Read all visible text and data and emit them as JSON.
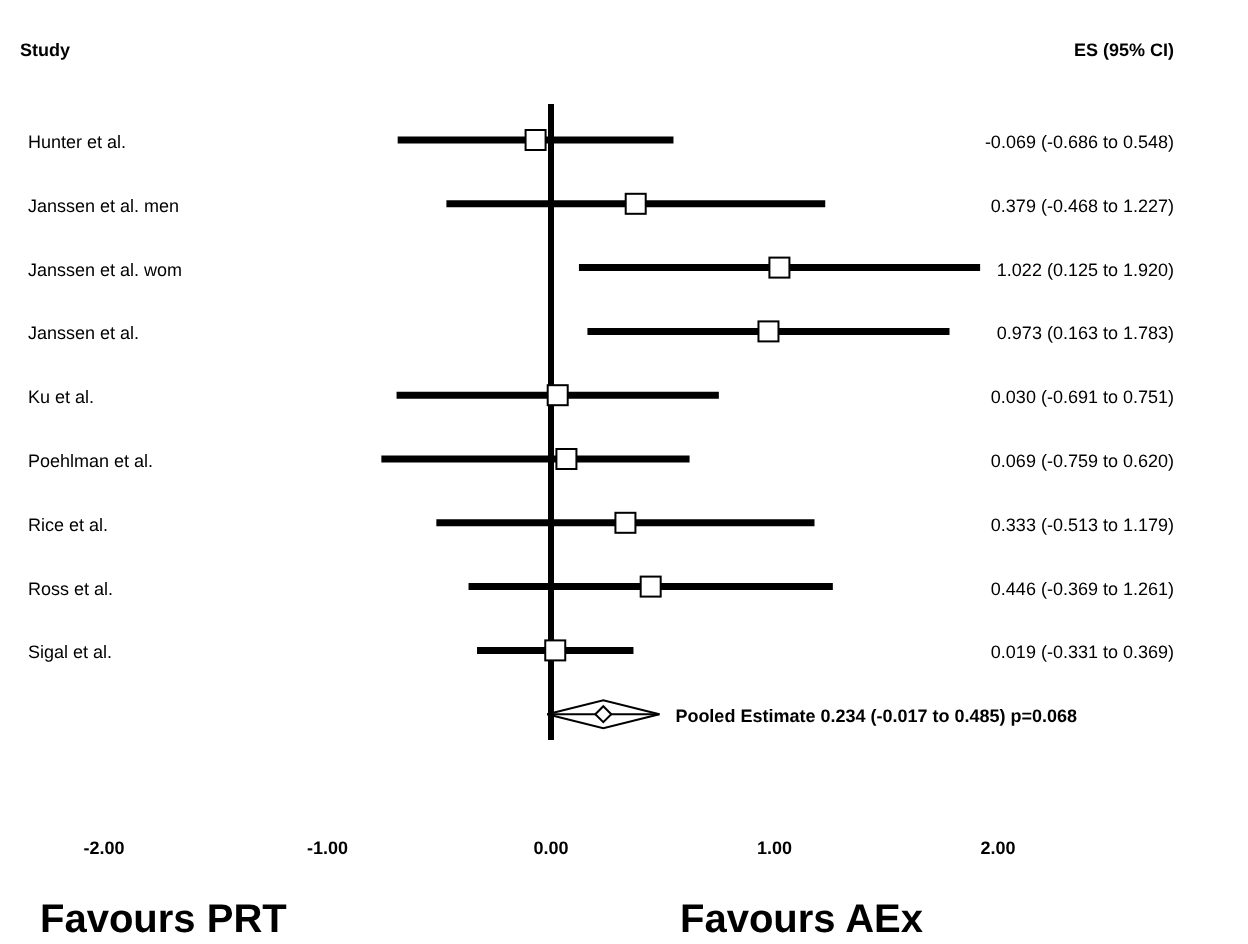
{
  "chart_data": {
    "type": "scatter",
    "orientation": "horizontal",
    "ylabel": "Study",
    "y2label": "ES (95% CI)",
    "categories": [
      "Hunter et al.",
      "Janssen et al. men",
      "Janssen et al. wom",
      "Janssen et al.",
      "Ku et al.",
      "Poehlman et al.",
      "Rice et al.",
      "Ross et al.",
      "Sigal et al.",
      null
    ],
    "series": [
      {
        "type": "scatter",
        "marker": "square",
        "color": "#000000",
        "values": [
          -0.069,
          0.379,
          1.022,
          0.973,
          0.03,
          0.069,
          0.333,
          0.446,
          0.019,
          null
        ],
        "errors": [
          [
            -0.686,
            0.548
          ],
          [
            -0.468,
            1.227
          ],
          [
            0.125,
            1.92
          ],
          [
            0.163,
            1.783
          ],
          [
            -0.691,
            0.751
          ],
          [
            -0.759,
            0.62
          ],
          [
            -0.513,
            1.179
          ],
          [
            -0.369,
            1.261
          ],
          [
            -0.331,
            0.369
          ],
          null
        ],
        "value_labels": [
          "-0.069 (-0.686 to 0.548)",
          "0.379 (-0.468 to 1.227)",
          "1.022 (0.125 to 1.920)",
          "0.973 (0.163 to 1.783)",
          "0.030 (-0.691 to 0.751)",
          "0.069 (-0.759 to 0.620)",
          "0.333 (-0.513 to 1.179)",
          "0.446 (-0.369 to 1.261)",
          "0.019 (-0.331 to 0.369)",
          null
        ]
      },
      {
        "type": "scatter",
        "marker": "diamond",
        "color": "#000000",
        "values": [
          null,
          null,
          null,
          null,
          null,
          null,
          null,
          null,
          null,
          0.234
        ],
        "errors": [
          null,
          null,
          null,
          null,
          null,
          null,
          null,
          null,
          null,
          [
            -0.017,
            0.485
          ]
        ],
        "value_labels": [
          null,
          null,
          null,
          null,
          null,
          null,
          null,
          null,
          null,
          "Pooled Estimate 0.234 (-0.017 to 0.485) p=0.068"
        ]
      }
    ],
    "xlim": [
      -2,
      2
    ],
    "xticks": [
      {
        "value": -2,
        "label": "-2.00"
      },
      {
        "value": -1,
        "label": "-1.00"
      },
      {
        "value": 0,
        "label": "0.00"
      },
      {
        "value": 1,
        "label": "1.00"
      },
      {
        "value": 2,
        "label": "2.00"
      }
    ],
    "ref_lines": [
      {
        "axis": "x",
        "value": 0,
        "color": "#000000"
      }
    ],
    "annotations": [
      "Favours PRT",
      "Favours AEx"
    ],
    "grid": false
  }
}
